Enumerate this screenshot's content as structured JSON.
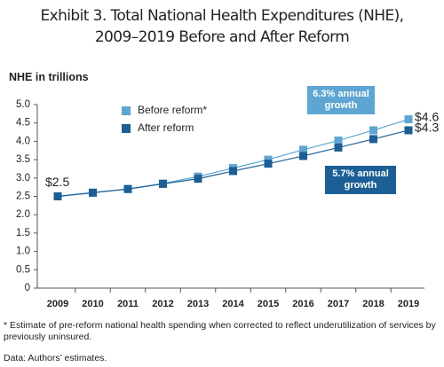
{
  "chart_data": {
    "type": "line",
    "title": "Exhibit 3. Total National Health Expenditures (NHE), 2009–2019 Before and After Reform",
    "y_axis_label": "NHE in trillions",
    "categories": [
      "2009",
      "2010",
      "2011",
      "2012",
      "2013",
      "2014",
      "2015",
      "2016",
      "2017",
      "2018",
      "2019"
    ],
    "series": [
      {
        "name": "Before reform*",
        "color": "#5da6d3",
        "values": [
          2.5,
          2.6,
          2.7,
          2.85,
          3.04,
          3.27,
          3.5,
          3.77,
          4.02,
          4.3,
          4.6
        ],
        "value_labels": [
          "$2.5",
          null,
          null,
          null,
          null,
          null,
          null,
          null,
          null,
          null,
          "$4.6"
        ]
      },
      {
        "name": "After reform",
        "color": "#1b5f96",
        "values": [
          2.5,
          2.6,
          2.7,
          2.84,
          2.98,
          3.19,
          3.39,
          3.6,
          3.83,
          4.06,
          4.3
        ],
        "value_labels": [
          null,
          null,
          null,
          null,
          null,
          null,
          null,
          null,
          null,
          null,
          "$4.3"
        ]
      }
    ],
    "ylim": [
      0,
      5
    ],
    "yticks": [
      0,
      0.5,
      {
        "value": 1,
        "label": "1.0"
      },
      1.5,
      {
        "value": 2,
        "label": "2.0"
      },
      2.5,
      {
        "value": 3,
        "label": "3.0"
      },
      3.5,
      {
        "value": 4,
        "label": "4.0"
      },
      4.5,
      {
        "value": 5,
        "label": "5.0"
      }
    ],
    "annotations": [
      {
        "text": "6.3% annual growth",
        "color": "#5da6d3"
      },
      {
        "text": "5.7% annual growth",
        "color": "#1b5f96"
      }
    ],
    "footnote": "* Estimate of pre-reform national health spending when corrected to reflect underutilization of services by previously uninsured.",
    "source": "Data: Authors’ estimates."
  }
}
